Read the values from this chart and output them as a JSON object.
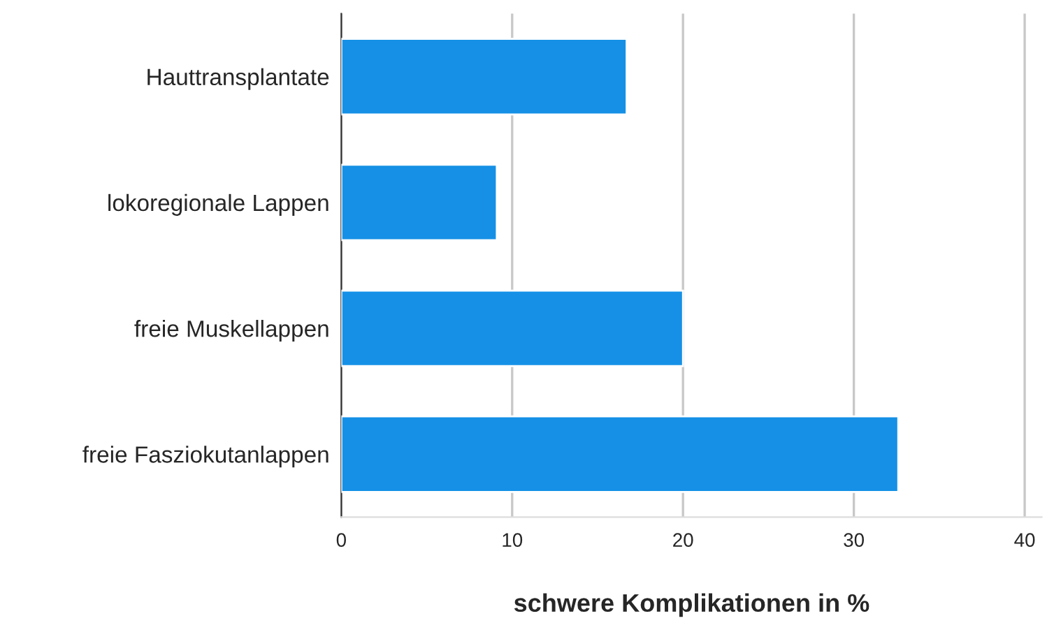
{
  "chart_data": {
    "type": "bar",
    "orientation": "horizontal",
    "categories": [
      "Hauttransplantate",
      "lokoregionale Lappen",
      "freie Muskellappen",
      "freie Fasziokutanlappen"
    ],
    "values": [
      16.7,
      9.1,
      20.0,
      32.6
    ],
    "color": "#1590e6",
    "xlabel": "schwere Komplikationen in %",
    "xlim": [
      0,
      41
    ],
    "xticks": [
      0,
      10,
      20,
      30,
      40
    ],
    "grid": "x",
    "legend": false
  }
}
